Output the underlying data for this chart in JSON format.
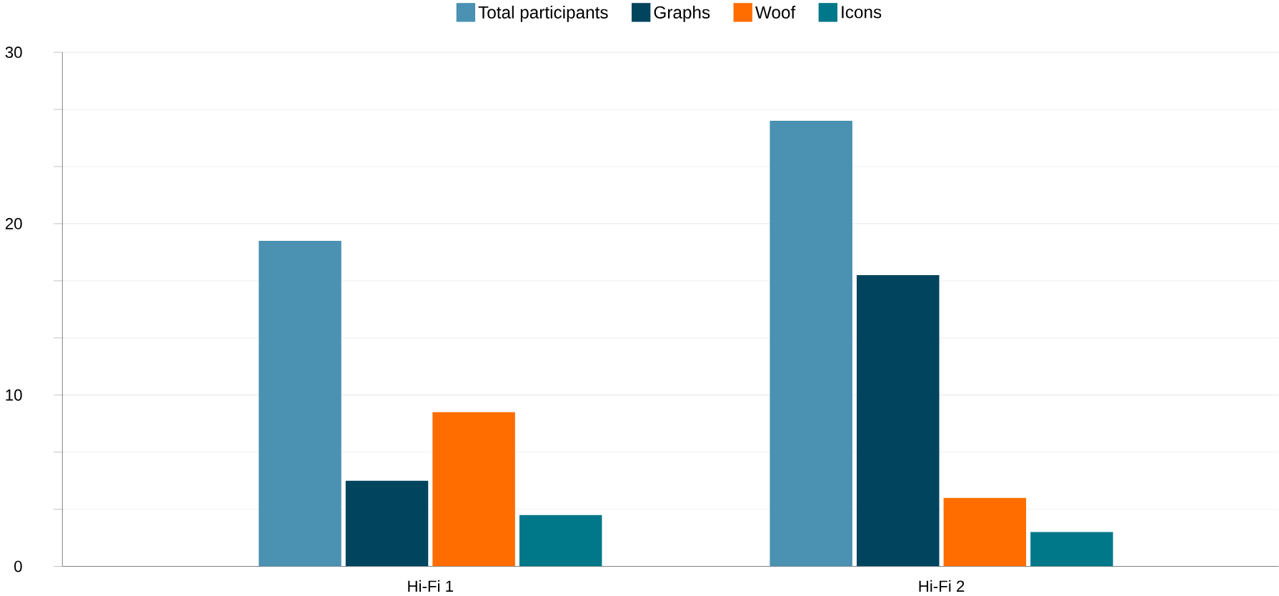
{
  "chart_data": {
    "type": "bar",
    "categories": [
      "Hi-Fi 1",
      "Hi-Fi 2"
    ],
    "series": [
      {
        "name": "Total participants",
        "color": "#4a91b2",
        "values": [
          19,
          26
        ]
      },
      {
        "name": "Graphs",
        "color": "#00445e",
        "values": [
          5,
          17
        ]
      },
      {
        "name": "Woof",
        "color": "#ff6d00",
        "values": [
          9,
          4
        ]
      },
      {
        "name": "Icons",
        "color": "#00788a",
        "values": [
          3,
          2
        ]
      }
    ],
    "ylim": [
      0,
      30
    ],
    "yticks": [
      0,
      10,
      20,
      30
    ],
    "grid": "y",
    "legend": "top"
  }
}
